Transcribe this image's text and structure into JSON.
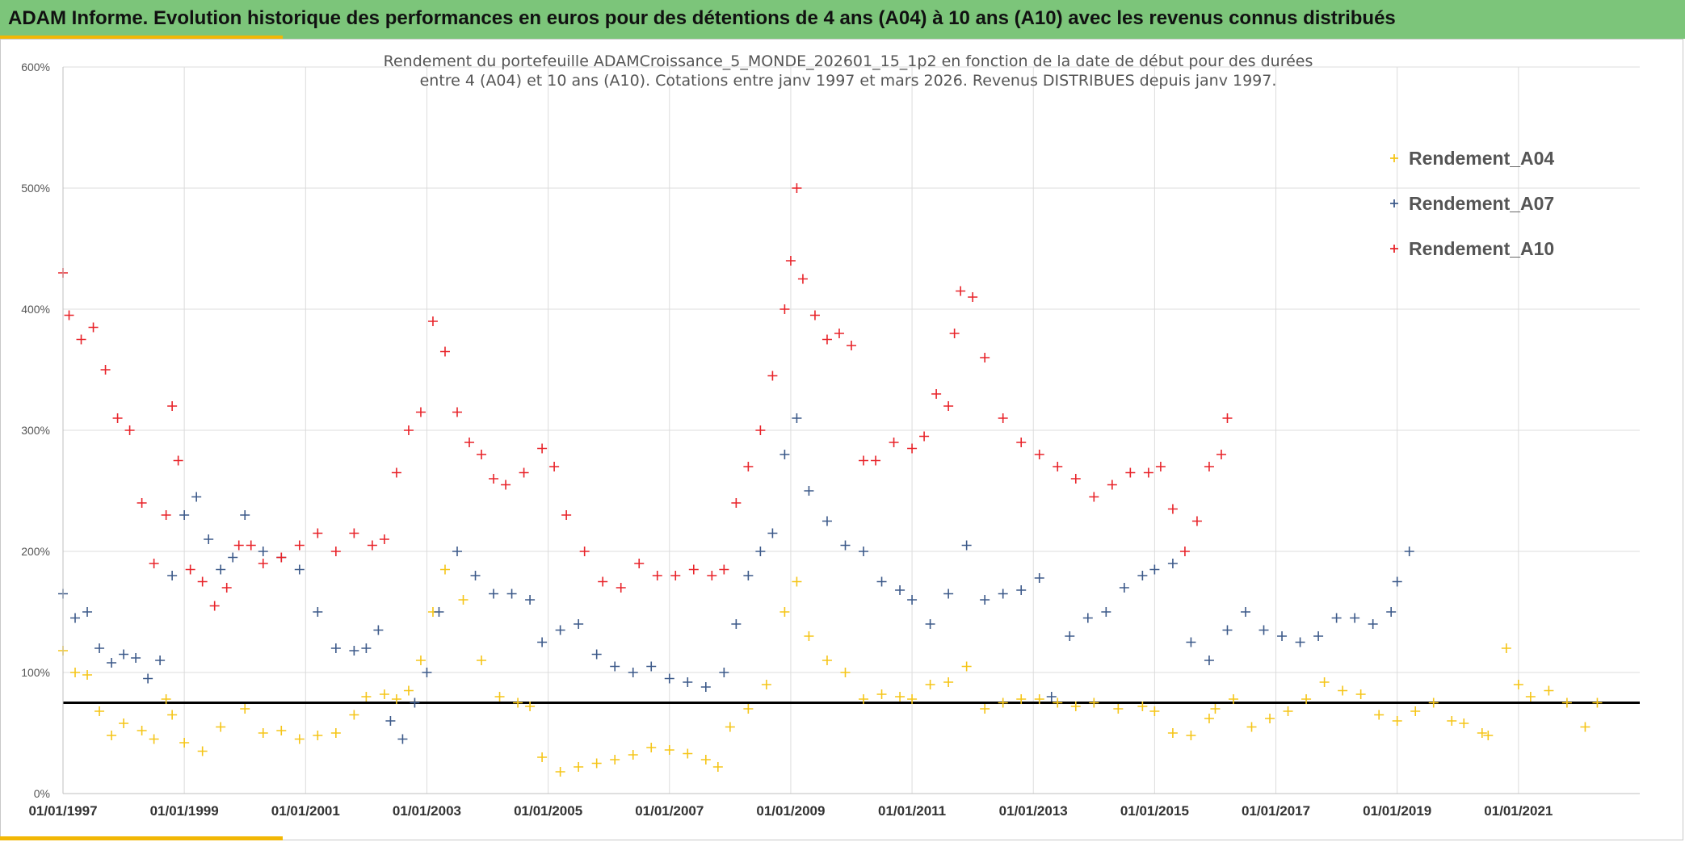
{
  "banner": {
    "title": "ADAM Informe. Evolution historique des performances en euros pour des détentions de 4 ans (A04) à 10 ans (A10) avec les revenus connus distribués",
    "bg_color": "#7cc57a",
    "accent_color": "#f2b705"
  },
  "chart_data": {
    "type": "scatter",
    "title_line1": "Rendement du portefeuille ADAMCroissance_5_MONDE_202601_15_1p2  en fonction de la date de début pour des durées",
    "title_line2": "entre 4 (A04) et 10 ans (A10). Cotations entre janv 1997 et mars 2026. Revenus DISTRIBUES depuis janv 1997.",
    "x_range": [
      1997.0,
      2023.0
    ],
    "ylim": [
      0,
      600
    ],
    "y_ticks": [
      0,
      100,
      200,
      300,
      400,
      500,
      600
    ],
    "y_tick_labels": [
      "0%",
      "100%",
      "200%",
      "300%",
      "400%",
      "500%",
      "600%"
    ],
    "x_ticks": [
      1997,
      1999,
      2001,
      2003,
      2005,
      2007,
      2009,
      2011,
      2013,
      2015,
      2017,
      2019,
      2021
    ],
    "x_tick_labels": [
      "01/01/1997",
      "01/01/1999",
      "01/01/2001",
      "01/01/2003",
      "01/01/2005",
      "01/01/2007",
      "01/01/2009",
      "01/01/2011",
      "01/01/2013",
      "01/01/2015",
      "01/01/2017",
      "01/01/2019",
      "01/01/2021"
    ],
    "grid": true,
    "legend_position": "top-right",
    "reference_line": {
      "y": 75,
      "color": "#000000"
    },
    "series": [
      {
        "name": "Rendement_A04",
        "color": "#f5c518",
        "x": [
          1997.0,
          1997.2,
          1997.4,
          1997.6,
          1997.8,
          1998.0,
          1998.3,
          1998.5,
          1998.7,
          1998.8,
          1999.0,
          1999.3,
          1999.6,
          2000.0,
          2000.3,
          2000.6,
          2000.9,
          2001.2,
          2001.5,
          2001.8,
          2002.0,
          2002.3,
          2002.5,
          2002.7,
          2002.9,
          2003.1,
          2003.3,
          2003.6,
          2003.9,
          2004.2,
          2004.5,
          2004.7,
          2004.9,
          2005.2,
          2005.5,
          2005.8,
          2006.1,
          2006.4,
          2006.7,
          2007.0,
          2007.3,
          2007.6,
          2007.8,
          2008.0,
          2008.3,
          2008.6,
          2008.9,
          2009.1,
          2009.3,
          2009.6,
          2009.9,
          2010.2,
          2010.5,
          2010.8,
          2011.0,
          2011.3,
          2011.6,
          2011.9,
          2012.2,
          2012.5,
          2012.8,
          2013.1,
          2013.4,
          2013.7,
          2014.0,
          2014.4,
          2014.8,
          2015.0,
          2015.3,
          2015.6,
          2015.9,
          2016.0,
          2016.3,
          2016.6,
          2016.9,
          2017.2,
          2017.5,
          2017.8,
          2018.1,
          2018.4,
          2018.7,
          2019.0,
          2019.3,
          2019.6,
          2019.9,
          2020.1,
          2020.4,
          2020.5,
          2020.8,
          2021.0,
          2021.2,
          2021.5,
          2021.8,
          2022.1,
          2022.3
        ],
        "y": [
          118,
          100,
          98,
          68,
          48,
          58,
          52,
          45,
          78,
          65,
          42,
          35,
          55,
          70,
          50,
          52,
          45,
          48,
          50,
          65,
          80,
          82,
          78,
          85,
          110,
          150,
          185,
          160,
          110,
          80,
          75,
          72,
          30,
          18,
          22,
          25,
          28,
          32,
          38,
          36,
          33,
          28,
          22,
          55,
          70,
          90,
          150,
          175,
          130,
          110,
          100,
          78,
          82,
          80,
          78,
          90,
          92,
          105,
          70,
          75,
          78,
          78,
          75,
          72,
          75,
          70,
          72,
          68,
          50,
          48,
          62,
          70,
          78,
          55,
          62,
          68,
          78,
          92,
          85,
          82,
          65,
          60,
          68,
          75,
          60,
          58,
          50,
          48,
          120,
          90,
          80,
          85,
          75,
          55,
          75
        ]
      },
      {
        "name": "Rendement_A07",
        "color": "#3d5a8a",
        "x": [
          1997.0,
          1997.2,
          1997.4,
          1997.6,
          1997.8,
          1998.0,
          1998.2,
          1998.4,
          1998.6,
          1998.8,
          1999.0,
          1999.2,
          1999.4,
          1999.6,
          1999.8,
          2000.0,
          2000.3,
          2000.6,
          2000.9,
          2001.2,
          2001.5,
          2001.8,
          2002.0,
          2002.2,
          2002.4,
          2002.6,
          2002.8,
          2003.0,
          2003.2,
          2003.5,
          2003.8,
          2004.1,
          2004.4,
          2004.7,
          2004.9,
          2005.2,
          2005.5,
          2005.8,
          2006.1,
          2006.4,
          2006.7,
          2007.0,
          2007.3,
          2007.6,
          2007.9,
          2008.1,
          2008.3,
          2008.5,
          2008.7,
          2008.9,
          2009.1,
          2009.3,
          2009.6,
          2009.9,
          2010.2,
          2010.5,
          2010.8,
          2011.0,
          2011.3,
          2011.6,
          2011.9,
          2012.2,
          2012.5,
          2012.8,
          2013.1,
          2013.3,
          2013.6,
          2013.9,
          2014.2,
          2014.5,
          2014.8,
          2015.0,
          2015.3,
          2015.6,
          2015.9,
          2016.2,
          2016.5,
          2016.8,
          2017.1,
          2017.4,
          2017.7,
          2018.0,
          2018.3,
          2018.6,
          2018.9,
          2019.0,
          2019.2
        ],
        "y": [
          165,
          145,
          150,
          120,
          108,
          115,
          112,
          95,
          110,
          180,
          230,
          245,
          210,
          185,
          195,
          230,
          200,
          195,
          185,
          150,
          120,
          118,
          120,
          135,
          60,
          45,
          75,
          100,
          150,
          200,
          180,
          165,
          165,
          160,
          125,
          135,
          140,
          115,
          105,
          100,
          105,
          95,
          92,
          88,
          100,
          140,
          180,
          200,
          215,
          280,
          310,
          250,
          225,
          205,
          200,
          175,
          168,
          160,
          140,
          165,
          205,
          160,
          165,
          168,
          178,
          80,
          130,
          145,
          150,
          170,
          180,
          185,
          190,
          125,
          110,
          135,
          150,
          135,
          130,
          125,
          130,
          145,
          145,
          140,
          150,
          175,
          200
        ]
      },
      {
        "name": "Rendement_A10",
        "color": "#e8242a",
        "x": [
          1997.0,
          1997.1,
          1997.3,
          1997.5,
          1997.7,
          1997.9,
          1998.1,
          1998.3,
          1998.5,
          1998.7,
          1998.8,
          1998.9,
          1999.1,
          1999.3,
          1999.5,
          1999.7,
          1999.9,
          2000.1,
          2000.3,
          2000.6,
          2000.9,
          2001.2,
          2001.5,
          2001.8,
          2002.1,
          2002.3,
          2002.5,
          2002.7,
          2002.9,
          2003.1,
          2003.3,
          2003.5,
          2003.7,
          2003.9,
          2004.1,
          2004.3,
          2004.6,
          2004.9,
          2005.1,
          2005.3,
          2005.6,
          2005.9,
          2006.2,
          2006.5,
          2006.8,
          2007.1,
          2007.4,
          2007.7,
          2007.9,
          2008.1,
          2008.3,
          2008.5,
          2008.7,
          2008.9,
          2009.0,
          2009.1,
          2009.2,
          2009.4,
          2009.6,
          2009.8,
          2010.0,
          2010.2,
          2010.4,
          2010.7,
          2011.0,
          2011.2,
          2011.4,
          2011.6,
          2011.7,
          2011.8,
          2012.0,
          2012.2,
          2012.5,
          2012.8,
          2013.1,
          2013.4,
          2013.7,
          2014.0,
          2014.3,
          2014.6,
          2014.9,
          2015.1,
          2015.3,
          2015.5,
          2015.7,
          2015.9,
          2016.1,
          2016.2
        ],
        "y": [
          430,
          395,
          375,
          385,
          350,
          310,
          300,
          240,
          190,
          230,
          320,
          275,
          185,
          175,
          155,
          170,
          205,
          205,
          190,
          195,
          205,
          215,
          200,
          215,
          205,
          210,
          265,
          300,
          315,
          390,
          365,
          315,
          290,
          280,
          260,
          255,
          265,
          285,
          270,
          230,
          200,
          175,
          170,
          190,
          180,
          180,
          185,
          180,
          185,
          240,
          270,
          300,
          345,
          400,
          440,
          500,
          425,
          395,
          375,
          380,
          370,
          275,
          275,
          290,
          285,
          295,
          330,
          320,
          380,
          415,
          410,
          360,
          310,
          290,
          280,
          270,
          260,
          245,
          255,
          265,
          265,
          270,
          235,
          200,
          225,
          270,
          280,
          310
        ]
      }
    ]
  }
}
